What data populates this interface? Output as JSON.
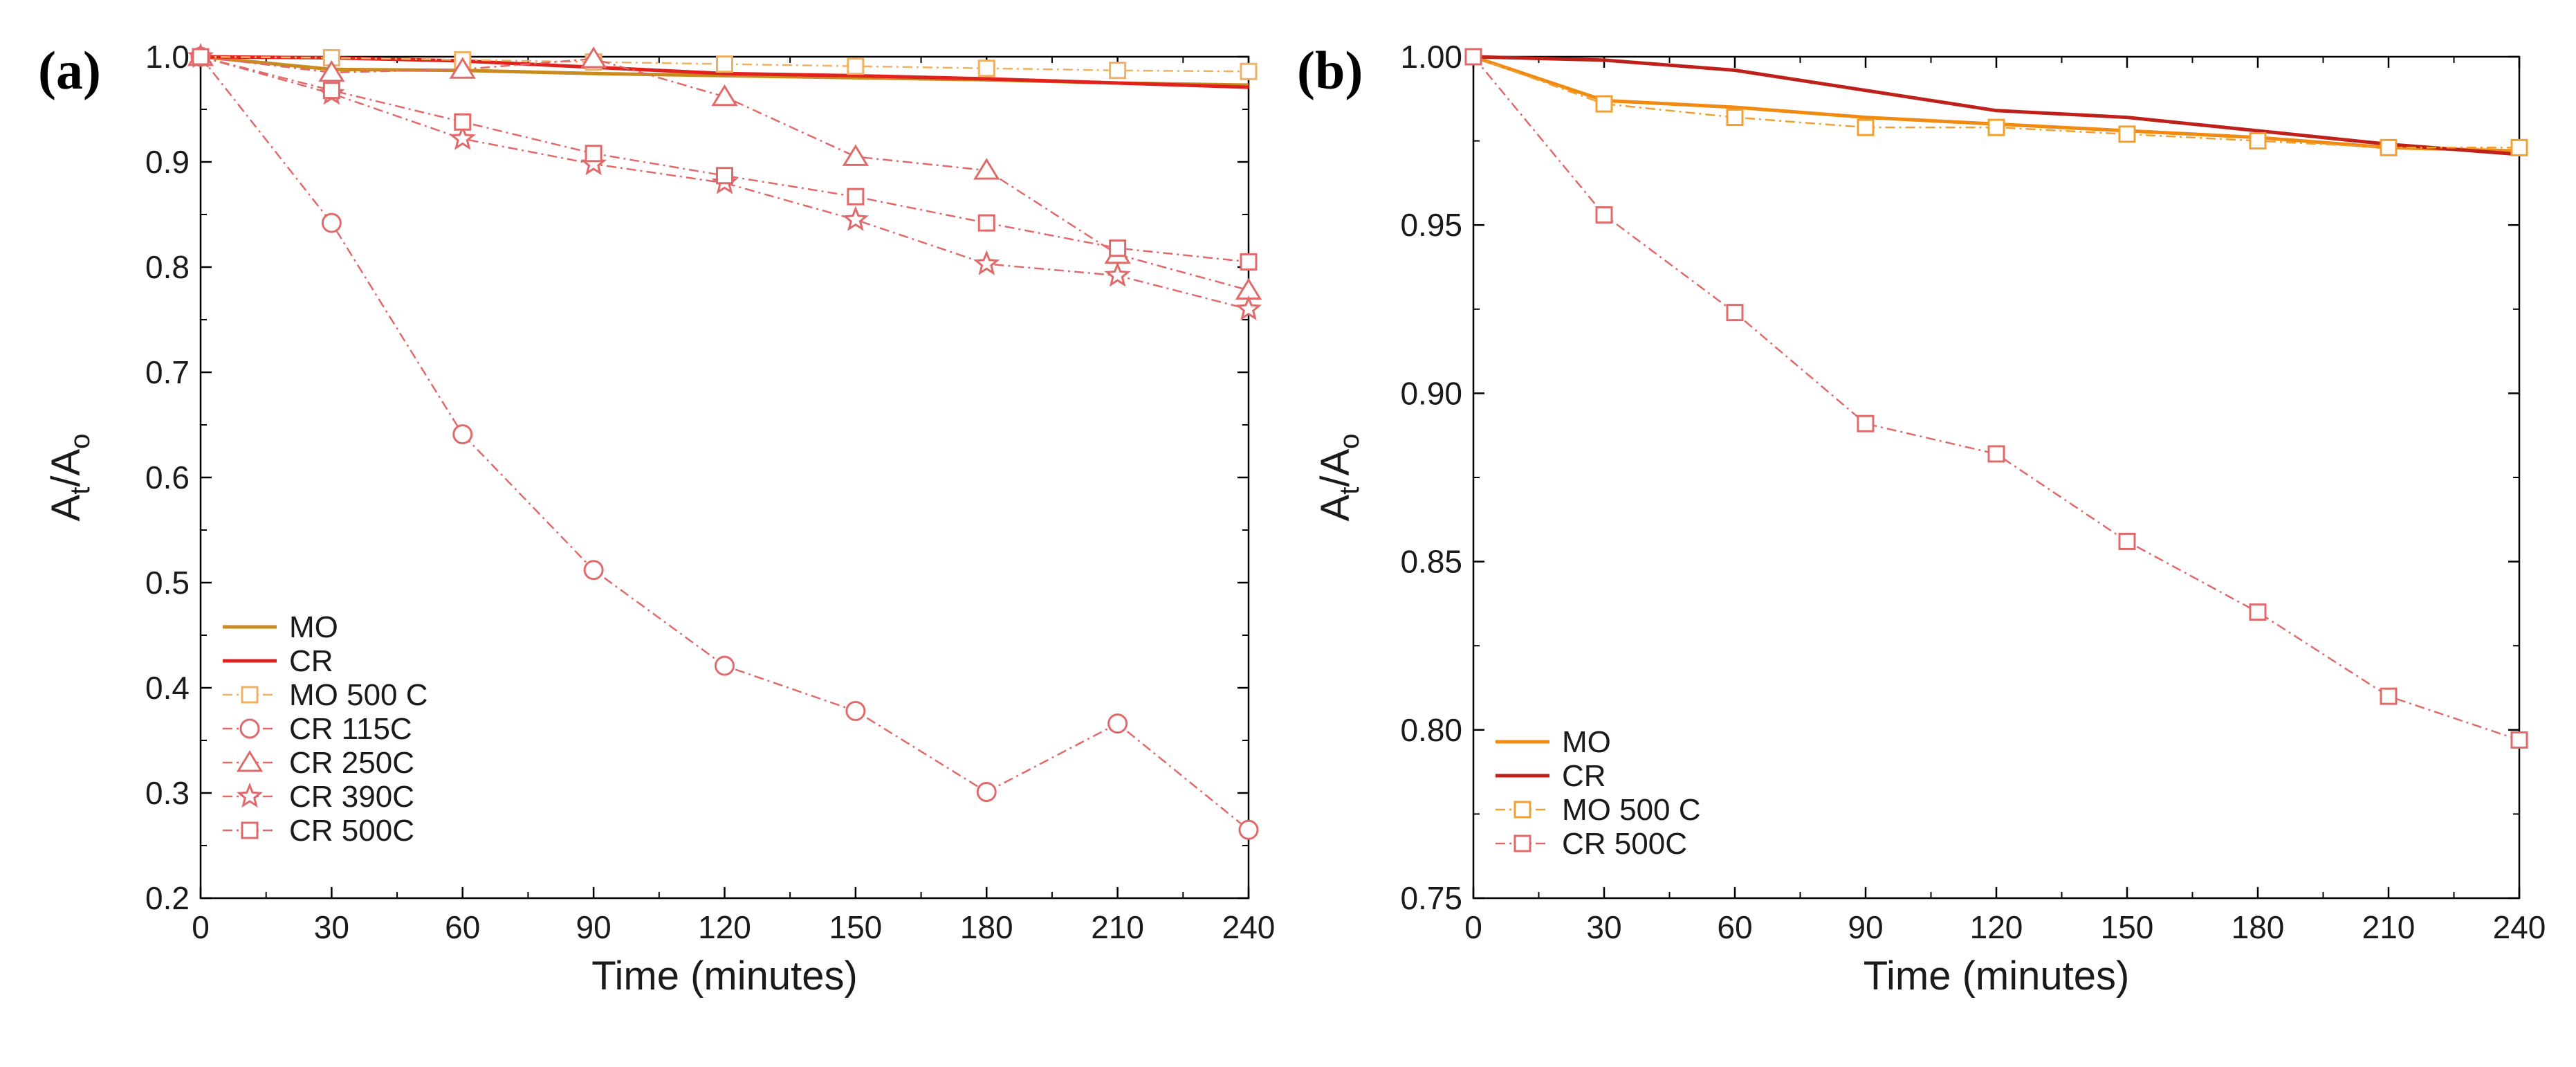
{
  "chart_data": [
    {
      "type": "line",
      "panel_label": "(a)",
      "xlabel": "Time (minutes)",
      "ylabel": {
        "main": "A",
        "sub1": "t",
        "sep": "/A",
        "sub2": "o"
      },
      "xlim": [
        0,
        240
      ],
      "ylim": [
        0.2,
        1.0
      ],
      "xticks": [
        0,
        30,
        60,
        90,
        120,
        150,
        180,
        210,
        240
      ],
      "yticks": [
        0.2,
        0.3,
        0.4,
        0.5,
        0.6,
        0.7,
        0.8,
        0.9,
        1.0
      ],
      "ytick_labels": [
        "0.2",
        "0.3",
        "0.4",
        "0.5",
        "0.6",
        "0.7",
        "0.8",
        "0.9",
        "1.0"
      ],
      "legend_position": "bottom-left",
      "series": [
        {
          "name": "MO",
          "color": "#c98a1e",
          "style": "solid",
          "marker": "none",
          "x": [
            0,
            30,
            60,
            90,
            120,
            150,
            180,
            210,
            240
          ],
          "values": [
            1.0,
            0.988,
            0.987,
            0.984,
            0.982,
            0.98,
            0.978,
            0.975,
            0.973
          ]
        },
        {
          "name": "CR",
          "color": "#e0211d",
          "style": "solid",
          "marker": "none",
          "x": [
            0,
            30,
            60,
            90,
            120,
            150,
            180,
            210,
            240
          ],
          "values": [
            1.0,
            0.999,
            0.996,
            0.99,
            0.984,
            0.982,
            0.979,
            0.975,
            0.971
          ]
        },
        {
          "name": "MO 500 C",
          "color": "#f0b060",
          "style": "dashdot",
          "marker": "square",
          "x": [
            0,
            30,
            60,
            90,
            120,
            150,
            180,
            210,
            240
          ],
          "values": [
            1.0,
            0.999,
            0.997,
            0.995,
            0.993,
            0.991,
            0.989,
            0.987,
            0.986
          ]
        },
        {
          "name": "CR 115C",
          "color": "#e06a6a",
          "style": "dashdot",
          "marker": "circle",
          "x": [
            0,
            30,
            60,
            90,
            120,
            150,
            180,
            210,
            240
          ],
          "values": [
            1.0,
            0.842,
            0.641,
            0.512,
            0.421,
            0.378,
            0.301,
            0.366,
            0.265
          ]
        },
        {
          "name": "CR 250C",
          "color": "#e06a6a",
          "style": "dashdot",
          "marker": "triangle",
          "x": [
            0,
            30,
            60,
            90,
            120,
            150,
            180,
            210,
            240
          ],
          "values": [
            1.0,
            0.985,
            0.988,
            0.998,
            0.962,
            0.905,
            0.892,
            0.812,
            0.778
          ]
        },
        {
          "name": "CR 390C",
          "color": "#e06a6a",
          "style": "dashdot",
          "marker": "star",
          "x": [
            0,
            30,
            60,
            90,
            120,
            150,
            180,
            210,
            240
          ],
          "values": [
            1.0,
            0.965,
            0.922,
            0.898,
            0.88,
            0.845,
            0.803,
            0.792,
            0.76
          ]
        },
        {
          "name": "CR 500C",
          "color": "#e06a6a",
          "style": "dashdot",
          "marker": "square",
          "x": [
            0,
            30,
            60,
            90,
            120,
            150,
            180,
            210,
            240
          ],
          "values": [
            1.0,
            0.968,
            0.938,
            0.908,
            0.887,
            0.867,
            0.842,
            0.818,
            0.805
          ]
        }
      ]
    },
    {
      "type": "line",
      "panel_label": "(b)",
      "xlabel": "Time (minutes)",
      "ylabel": {
        "main": "A",
        "sub1": "t",
        "sep": "/A",
        "sub2": "o"
      },
      "xlim": [
        0,
        240
      ],
      "ylim": [
        0.75,
        1.0
      ],
      "xticks": [
        0,
        30,
        60,
        90,
        120,
        150,
        180,
        210,
        240
      ],
      "yticks": [
        0.75,
        0.8,
        0.85,
        0.9,
        0.95,
        1.0
      ],
      "ytick_labels": [
        "0.75",
        "0.80",
        "0.85",
        "0.90",
        "0.95",
        "1.00"
      ],
      "legend_position": "bottom-left",
      "series": [
        {
          "name": "MO",
          "color": "#f08a10",
          "style": "solid",
          "marker": "none",
          "x": [
            0,
            30,
            60,
            90,
            120,
            150,
            180,
            210,
            240
          ],
          "values": [
            1.0,
            0.987,
            0.985,
            0.982,
            0.98,
            0.978,
            0.976,
            0.973,
            0.972
          ]
        },
        {
          "name": "CR",
          "color": "#c0201a",
          "style": "solid",
          "marker": "none",
          "x": [
            0,
            30,
            60,
            90,
            120,
            150,
            180,
            210,
            240
          ],
          "values": [
            1.0,
            0.999,
            0.996,
            0.99,
            0.984,
            0.982,
            0.978,
            0.974,
            0.971
          ]
        },
        {
          "name": "MO 500 C",
          "color": "#f0a030",
          "style": "dashdot",
          "marker": "square",
          "x": [
            0,
            30,
            60,
            90,
            120,
            150,
            180,
            210,
            240
          ],
          "values": [
            1.0,
            0.986,
            0.982,
            0.979,
            0.979,
            0.977,
            0.975,
            0.973,
            0.973
          ]
        },
        {
          "name": "CR 500C",
          "color": "#e06a6a",
          "style": "dashdot",
          "marker": "square",
          "x": [
            0,
            30,
            60,
            90,
            120,
            150,
            180,
            210,
            240
          ],
          "values": [
            1.0,
            0.953,
            0.924,
            0.891,
            0.882,
            0.856,
            0.835,
            0.81,
            0.797
          ]
        }
      ]
    }
  ]
}
